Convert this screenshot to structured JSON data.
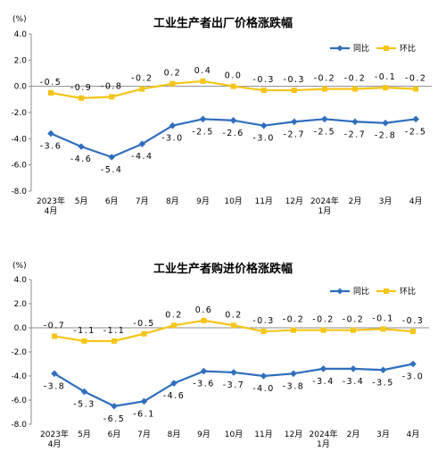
{
  "chart_data": [
    {
      "type": "line",
      "title": "工业生产者出厂价格涨跌幅",
      "unit": "(%)",
      "categories": [
        [
          "2023年",
          "4月"
        ],
        [
          "5月"
        ],
        [
          "6月"
        ],
        [
          "7月"
        ],
        [
          "8月"
        ],
        [
          "9月"
        ],
        [
          "10月"
        ],
        [
          "11月"
        ],
        [
          "12月"
        ],
        [
          "2024年",
          "1月"
        ],
        [
          "2月"
        ],
        [
          "3月"
        ],
        [
          "4月"
        ]
      ],
      "ylim": [
        -8.0,
        4.0
      ],
      "yticks": [
        "4.0",
        "2.0",
        "0.0",
        "-2.0",
        "-4.0",
        "-6.0",
        "-8.0"
      ],
      "grid": false,
      "legend_position": "top-right",
      "series": [
        {
          "name": "同比",
          "color": "#2f6ebd",
          "values": [
            -3.6,
            -4.6,
            -5.4,
            -4.4,
            -3.0,
            -2.5,
            -2.6,
            -3.0,
            -2.7,
            -2.5,
            -2.7,
            -2.8,
            -2.5
          ],
          "labels": [
            "-3.6",
            "-4.6",
            "-5.4",
            "-4.4",
            "-3.0",
            "-2.5",
            "-2.6",
            "-3.0",
            "-2.7",
            "-2.5",
            "-2.7",
            "-2.8",
            "-2.5"
          ]
        },
        {
          "name": "环比",
          "color": "#f5c518",
          "values": [
            -0.5,
            -0.9,
            -0.8,
            -0.2,
            0.2,
            0.4,
            0.0,
            -0.3,
            -0.3,
            -0.2,
            -0.2,
            -0.1,
            -0.2
          ],
          "labels": [
            "-0.5",
            "-0.9",
            "-0.8",
            "-0.2",
            "0.2",
            "0.4",
            "0.0",
            "-0.3",
            "-0.3",
            "-0.2",
            "-0.2",
            "-0.1",
            "-0.2"
          ]
        }
      ]
    },
    {
      "type": "line",
      "title": "工业生产者购进价格涨跌幅",
      "unit": "(%)",
      "categories": [
        [
          "2023年",
          "4月"
        ],
        [
          "5月"
        ],
        [
          "6月"
        ],
        [
          "7月"
        ],
        [
          "8月"
        ],
        [
          "9月"
        ],
        [
          "10月"
        ],
        [
          "11月"
        ],
        [
          "12月"
        ],
        [
          "2024年",
          "1月"
        ],
        [
          "2月"
        ],
        [
          "3月"
        ],
        [
          "4月"
        ]
      ],
      "ylim": [
        -8.0,
        4.0
      ],
      "yticks": [
        "4.0",
        "2.0",
        "0.0",
        "-2.0",
        "-4.0",
        "-6.0",
        "-8.0"
      ],
      "grid": false,
      "legend_position": "top-right",
      "series": [
        {
          "name": "同比",
          "color": "#2f6ebd",
          "values": [
            -3.8,
            -5.3,
            -6.5,
            -6.1,
            -4.6,
            -3.6,
            -3.7,
            -4.0,
            -3.8,
            -3.4,
            -3.4,
            -3.5,
            -3.0
          ],
          "labels": [
            "-3.8",
            "-5.3",
            "-6.5",
            "-6.1",
            "-4.6",
            "-3.6",
            "-3.7",
            "-4.0",
            "-3.8",
            "-3.4",
            "-3.4",
            "-3.5",
            "-3.0"
          ]
        },
        {
          "name": "环比",
          "color": "#f5c518",
          "values": [
            -0.7,
            -1.1,
            -1.1,
            -0.5,
            0.2,
            0.6,
            0.2,
            -0.3,
            -0.2,
            -0.2,
            -0.2,
            -0.1,
            -0.3
          ],
          "labels": [
            "-0.7",
            "-1.1",
            "-1.1",
            "-0.5",
            "0.2",
            "0.6",
            "0.2",
            "-0.3",
            "-0.2",
            "-0.2",
            "-0.2",
            "-0.1",
            "-0.3"
          ]
        }
      ]
    }
  ]
}
